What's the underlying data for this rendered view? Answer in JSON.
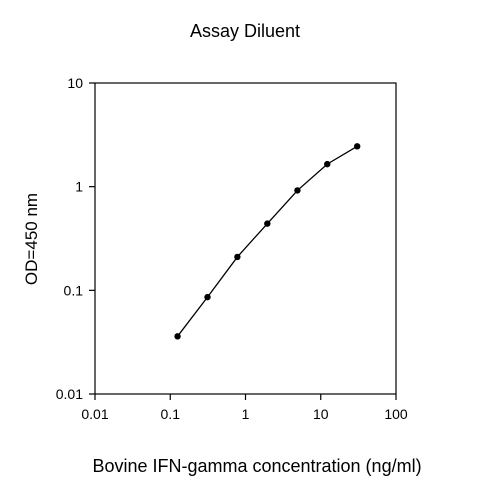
{
  "chart_data": {
    "type": "line",
    "title": "Assay Diluent",
    "xlabel": "Bovine IFN-gamma concentration (ng/ml)",
    "ylabel": "OD=450 nm",
    "x_scale": "log",
    "y_scale": "log",
    "xlim": [
      0.01,
      100
    ],
    "ylim": [
      0.01,
      10
    ],
    "grid": false,
    "legend": "none",
    "x_ticks": [
      "0.01",
      "0.1",
      "1",
      "10",
      "100"
    ],
    "y_ticks": [
      "0.01",
      "0.1",
      "1",
      "10"
    ],
    "series": [
      {
        "x": [
          0.125,
          0.3125,
          0.78,
          1.95,
          4.9,
          12.2,
          30.5
        ],
        "y": [
          0.036,
          0.086,
          0.21,
          0.44,
          0.92,
          1.65,
          2.45
        ],
        "color": "#000000",
        "marker": "circle"
      }
    ]
  }
}
